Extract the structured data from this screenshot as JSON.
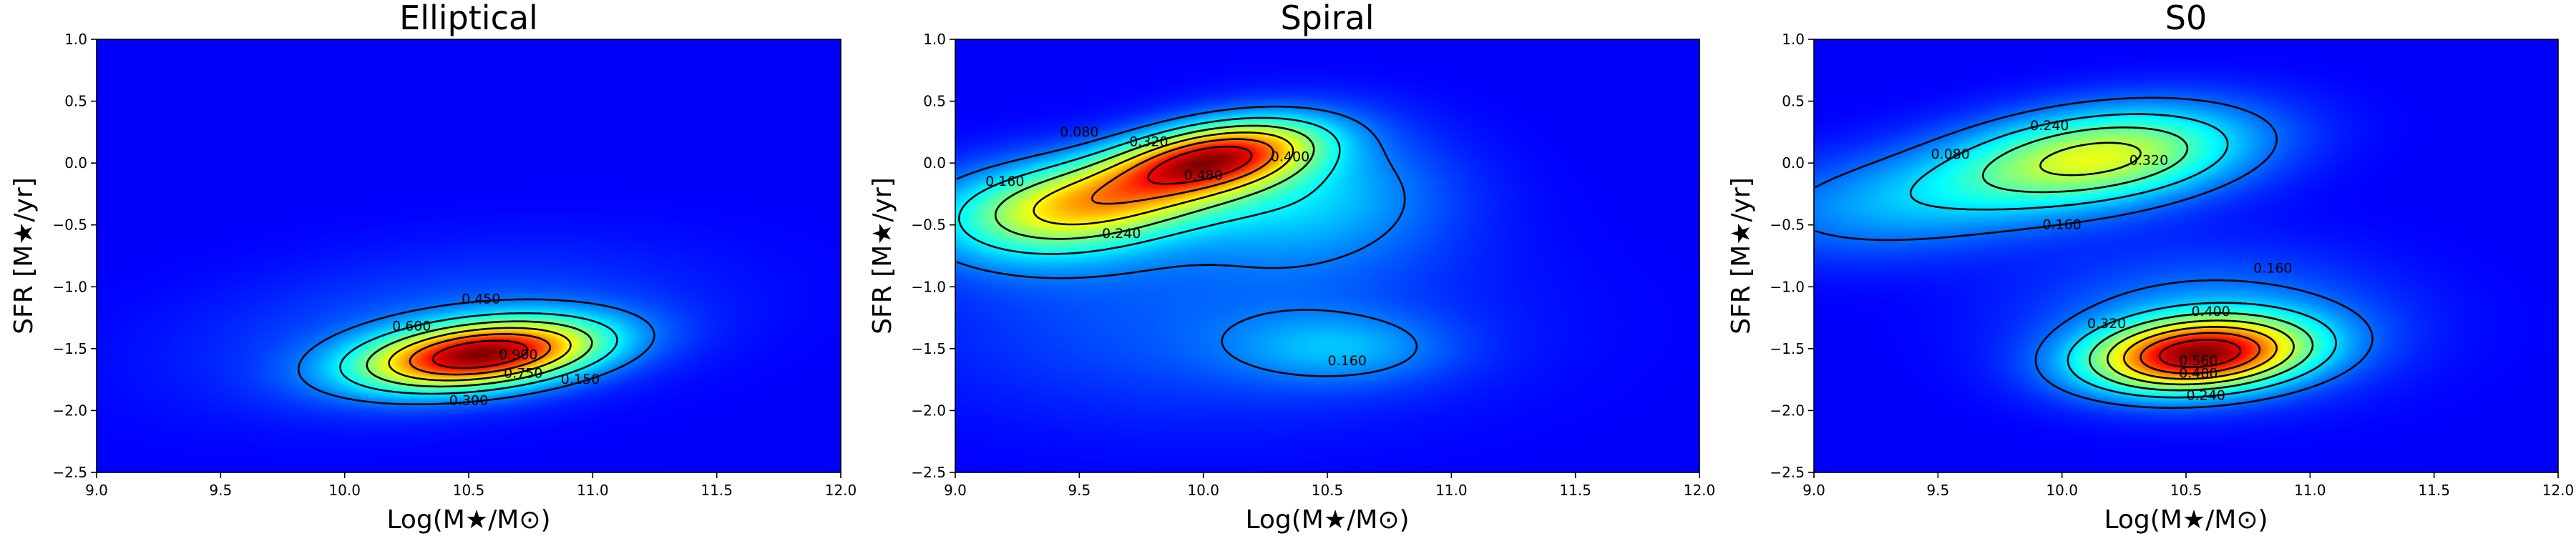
{
  "chart_data": [
    {
      "type": "heatmap",
      "title": "Elliptical",
      "xlabel": "Log(M★/M⊙)",
      "ylabel": "SFR [M★/yr]",
      "xlim": [
        9.0,
        12.0
      ],
      "ylim": [
        -2.5,
        1.0
      ],
      "xticks": [
        "9.0",
        "9.5",
        "10.0",
        "10.5",
        "11.0",
        "11.5",
        "12.0"
      ],
      "yticks": [
        "-2.5",
        "-2.0",
        "-1.5",
        "-1.0",
        "-0.5",
        "0.0",
        "0.5",
        "1.0"
      ],
      "colormap": "jet",
      "peak": {
        "x": 10.55,
        "y": -1.55
      },
      "density_components": [
        {
          "x": 10.55,
          "y": -1.55,
          "sx": 0.33,
          "sy": 0.19,
          "rho": 0.35,
          "w": 1.0
        },
        {
          "x": 10.4,
          "y": -1.35,
          "sx": 0.7,
          "sy": 0.45,
          "rho": 0.3,
          "w": 0.12
        }
      ],
      "contour_levels": [
        "0.150",
        "0.300",
        "0.450",
        "0.600",
        "0.750",
        "0.900"
      ],
      "contour_label_positions": [
        {
          "text": "0.450",
          "x": 10.55,
          "y": -1.1
        },
        {
          "text": "0.600",
          "x": 10.27,
          "y": -1.32
        },
        {
          "text": "0.900",
          "x": 10.7,
          "y": -1.55
        },
        {
          "text": "0.750",
          "x": 10.72,
          "y": -1.7
        },
        {
          "text": "0.300",
          "x": 10.5,
          "y": -1.92
        },
        {
          "text": "0.150",
          "x": 10.95,
          "y": -1.75
        }
      ]
    },
    {
      "type": "heatmap",
      "title": "Spiral",
      "xlabel": "Log(M★/M⊙)",
      "ylabel": "SFR [M★/yr]",
      "xlim": [
        9.0,
        12.0
      ],
      "ylim": [
        -2.5,
        1.0
      ],
      "xticks": [
        "9.0",
        "9.5",
        "10.0",
        "10.5",
        "11.0",
        "11.5",
        "12.0"
      ],
      "yticks": [
        "-2.5",
        "-2.0",
        "-1.5",
        "-1.0",
        "-0.5",
        "0.0",
        "0.5",
        "1.0"
      ],
      "colormap": "jet",
      "peak": {
        "x": 10.05,
        "y": 0.05
      },
      "density_components": [
        {
          "x": 10.05,
          "y": 0.05,
          "sx": 0.28,
          "sy": 0.2,
          "rho": 0.4,
          "w": 1.0
        },
        {
          "x": 9.6,
          "y": -0.3,
          "sx": 0.35,
          "sy": 0.25,
          "rho": 0.3,
          "w": 0.6
        },
        {
          "x": 10.4,
          "y": -0.25,
          "sx": 0.4,
          "sy": 0.4,
          "rho": 0.0,
          "w": 0.3
        },
        {
          "x": 9.3,
          "y": -0.45,
          "sx": 0.35,
          "sy": 0.3,
          "rho": 0.0,
          "w": 0.3
        },
        {
          "x": 10.55,
          "y": -1.5,
          "sx": 0.3,
          "sy": 0.2,
          "rho": 0.0,
          "w": 0.2
        },
        {
          "x": 10.0,
          "y": -1.3,
          "sx": 0.8,
          "sy": 0.55,
          "rho": 0.0,
          "w": 0.14
        }
      ],
      "contour_levels": [
        "0.080",
        "0.160",
        "0.240",
        "0.320",
        "0.400",
        "0.480"
      ],
      "contour_label_positions": [
        {
          "text": "0.160",
          "x": 9.2,
          "y": -0.15
        },
        {
          "text": "0.080",
          "x": 9.5,
          "y": 0.25
        },
        {
          "text": "0.320",
          "x": 9.78,
          "y": 0.17
        },
        {
          "text": "0.480",
          "x": 10.0,
          "y": -0.1
        },
        {
          "text": "0.400",
          "x": 10.35,
          "y": 0.05
        },
        {
          "text": "0.240",
          "x": 9.67,
          "y": -0.57
        },
        {
          "text": "0.160",
          "x": 10.58,
          "y": -1.6
        }
      ]
    },
    {
      "type": "heatmap",
      "title": "S0",
      "xlabel": "Log(M★/M⊙)",
      "ylabel": "SFR [M★/yr]",
      "xlim": [
        9.0,
        12.0
      ],
      "ylim": [
        -2.5,
        1.0
      ],
      "xticks": [
        "9.0",
        "9.5",
        "10.0",
        "10.5",
        "11.0",
        "11.5",
        "12.0"
      ],
      "yticks": [
        "-2.5",
        "-2.0",
        "-1.5",
        "-1.0",
        "-0.5",
        "0.0",
        "0.5",
        "1.0"
      ],
      "colormap": "jet",
      "peak": {
        "x": 10.55,
        "y": -1.55
      },
      "density_components": [
        {
          "x": 10.55,
          "y": -1.55,
          "sx": 0.3,
          "sy": 0.2,
          "rho": 0.2,
          "w": 1.0
        },
        {
          "x": 10.15,
          "y": 0.05,
          "sx": 0.42,
          "sy": 0.28,
          "rho": 0.3,
          "w": 0.62
        },
        {
          "x": 9.3,
          "y": -0.35,
          "sx": 0.45,
          "sy": 0.3,
          "rho": 0.2,
          "w": 0.2
        },
        {
          "x": 10.6,
          "y": -1.3,
          "sx": 0.5,
          "sy": 0.4,
          "rho": 0.0,
          "w": 0.2
        }
      ],
      "contour_levels": [
        "0.080",
        "0.160",
        "0.240",
        "0.320",
        "0.400",
        "0.480",
        "0.560"
      ],
      "contour_label_positions": [
        {
          "text": "0.080",
          "x": 9.55,
          "y": 0.07
        },
        {
          "text": "0.240",
          "x": 9.95,
          "y": 0.3
        },
        {
          "text": "0.320",
          "x": 10.35,
          "y": 0.02
        },
        {
          "text": "0.160",
          "x": 10.0,
          "y": -0.5
        },
        {
          "text": "0.160",
          "x": 10.85,
          "y": -0.85
        },
        {
          "text": "0.400",
          "x": 10.6,
          "y": -1.2
        },
        {
          "text": "0.320",
          "x": 10.18,
          "y": -1.3
        },
        {
          "text": "0.560",
          "x": 10.55,
          "y": -1.6
        },
        {
          "text": "0.480",
          "x": 10.55,
          "y": -1.7
        },
        {
          "text": "0.240",
          "x": 10.58,
          "y": -1.88
        }
      ]
    }
  ]
}
